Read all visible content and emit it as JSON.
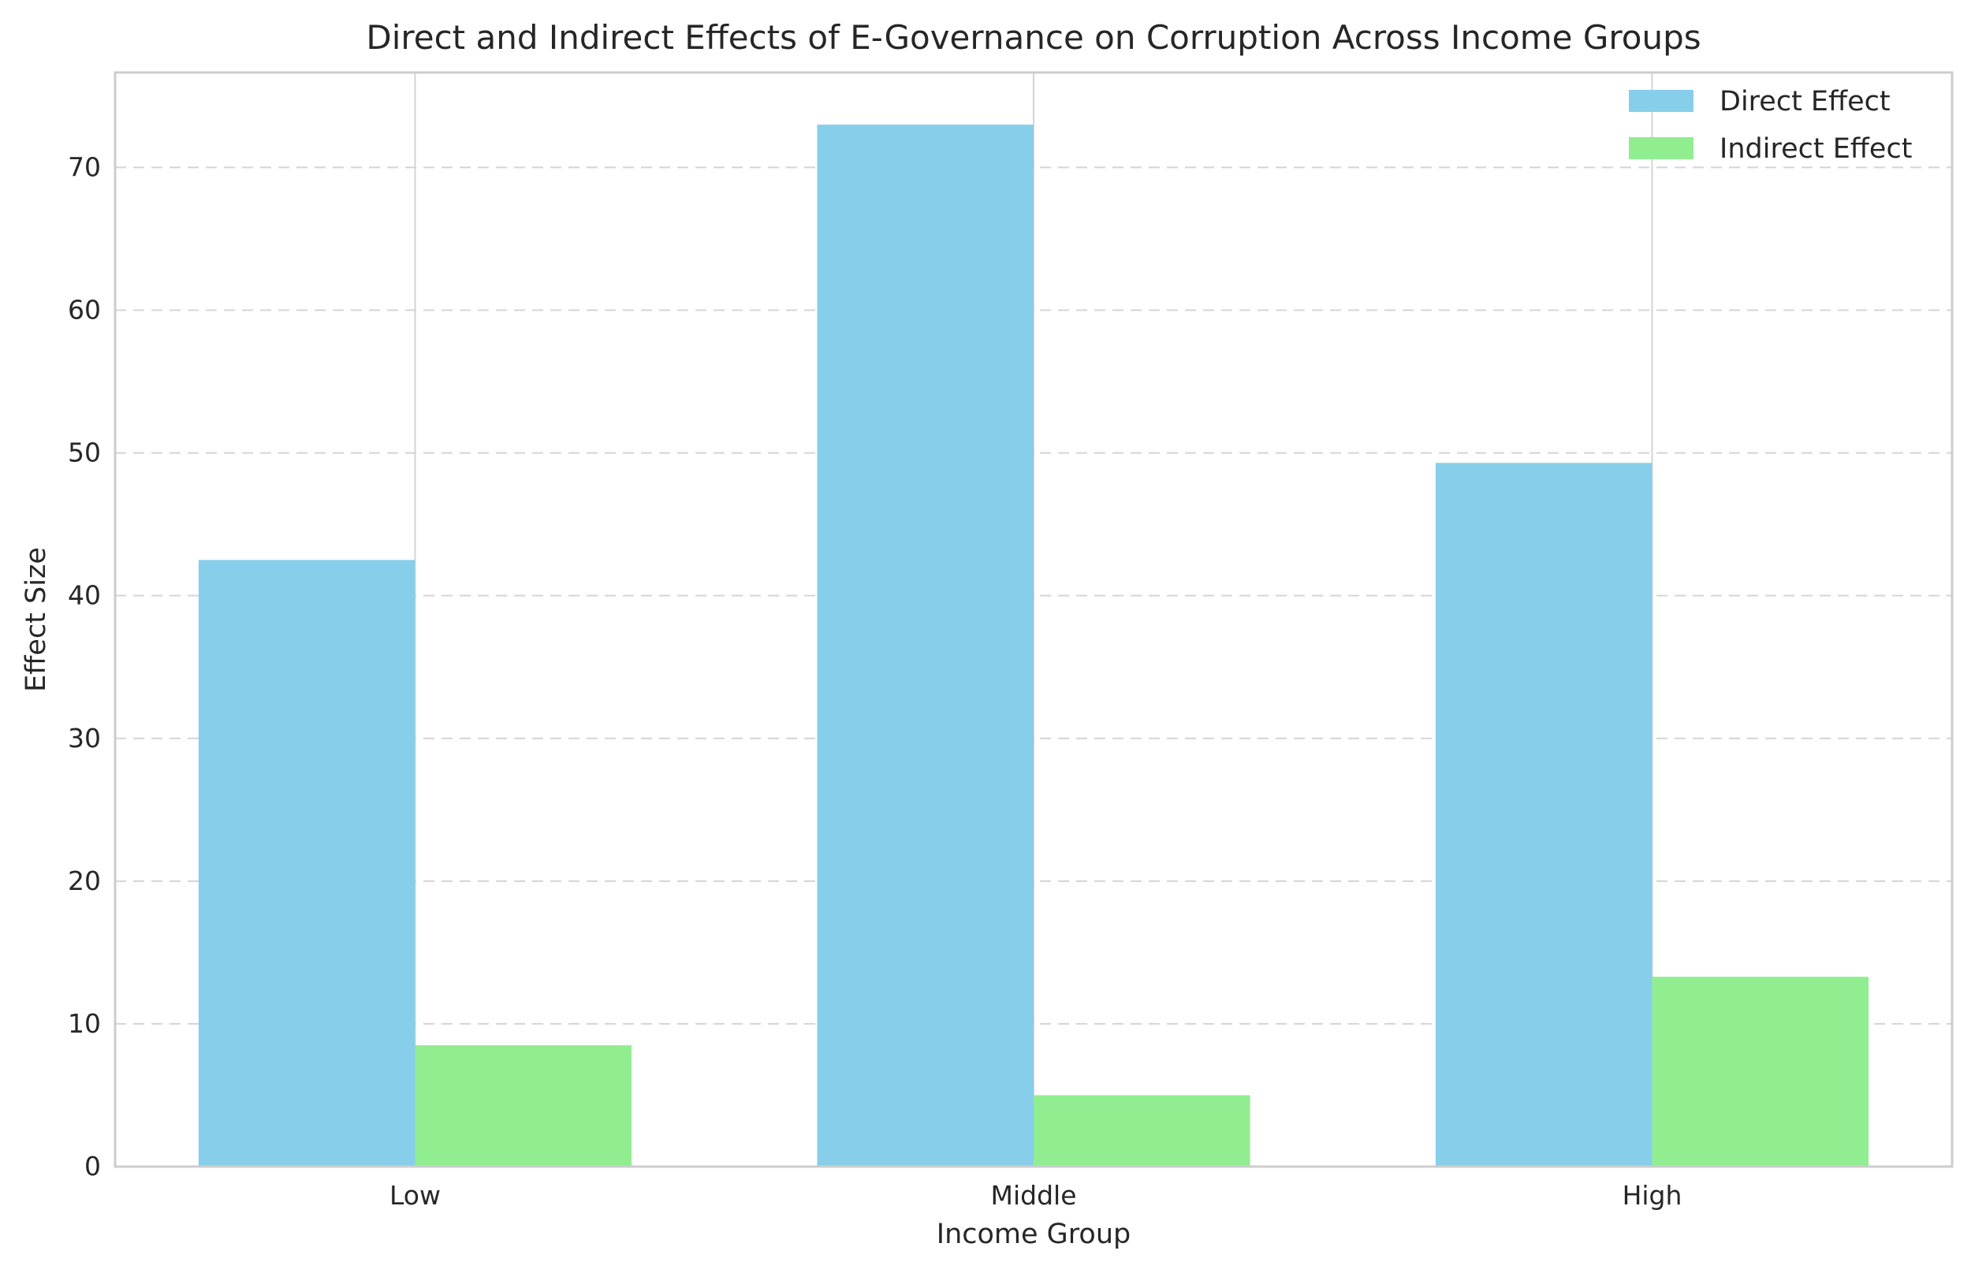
{
  "chart_data": {
    "type": "bar",
    "title": "Direct and Indirect Effects of E-Governance on Corruption Across Income Groups",
    "xlabel": "Income Group",
    "ylabel": "Effect Size",
    "categories": [
      "Low",
      "Middle",
      "High"
    ],
    "series": [
      {
        "name": "Direct Effect",
        "values": [
          42.5,
          73.0,
          49.3
        ],
        "color": "#87CEEB"
      },
      {
        "name": "Indirect Effect",
        "values": [
          8.5,
          5.0,
          13.3
        ],
        "color": "#90EE90"
      }
    ],
    "ylim": [
      0,
      76.65
    ],
    "yticks": [
      0,
      10,
      20,
      30,
      40,
      50,
      60,
      70
    ],
    "grid": true,
    "legend_position": "top-right"
  }
}
